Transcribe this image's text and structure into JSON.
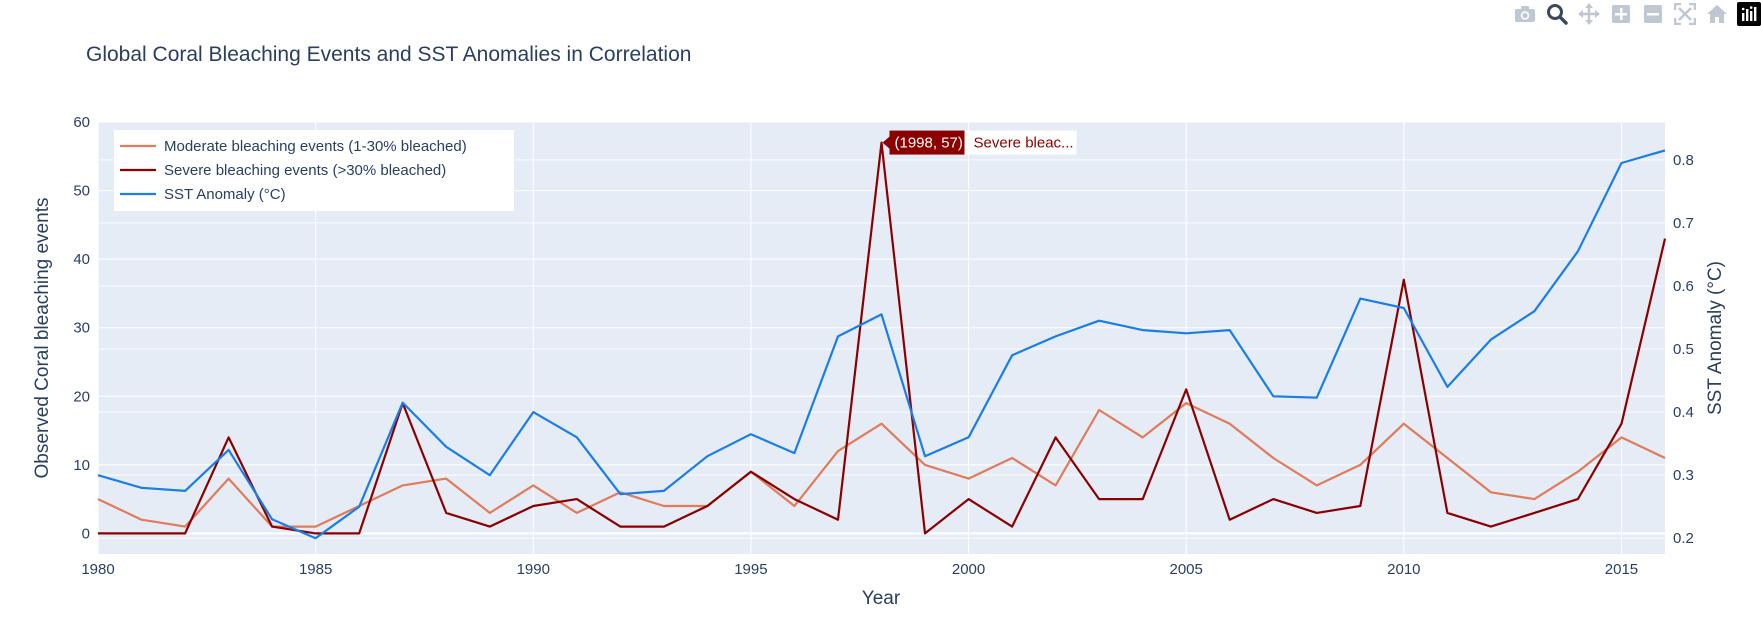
{
  "chart_data": {
    "type": "line",
    "title": "Global Coral Bleaching Events and SST Anomalies in Correlation",
    "xlabel": "Year",
    "ylabel": "Observed Coral bleaching events",
    "y2label": "SST Anomaly (°C)",
    "xlim": [
      1980,
      2016
    ],
    "ylim": [
      -3,
      60
    ],
    "y2lim": [
      0.175,
      0.86
    ],
    "x_ticks": [
      1980,
      1985,
      1990,
      1995,
      2000,
      2005,
      2010,
      2015
    ],
    "y_ticks": [
      0,
      10,
      20,
      30,
      40,
      50,
      60
    ],
    "y2_ticks": [
      0.2,
      0.3,
      0.4,
      0.5,
      0.6,
      0.7,
      0.8
    ],
    "y2_tick_labels": [
      "0.2",
      "0.3",
      "0.4",
      "0.5",
      "0.6",
      "0.7",
      "0.8"
    ],
    "x": [
      1980,
      1981,
      1982,
      1983,
      1984,
      1985,
      1986,
      1987,
      1988,
      1989,
      1990,
      1991,
      1992,
      1993,
      1994,
      1995,
      1996,
      1997,
      1998,
      1999,
      2000,
      2001,
      2002,
      2003,
      2004,
      2005,
      2006,
      2007,
      2008,
      2009,
      2010,
      2011,
      2012,
      2013,
      2014,
      2015,
      2016
    ],
    "series": [
      {
        "name": "Moderate bleaching events (1-30% bleached)",
        "axis": "y",
        "color": "#e07b5b",
        "values": [
          5,
          2,
          1,
          8,
          1,
          1,
          4,
          7,
          8,
          3,
          7,
          3,
          6,
          4,
          4,
          9,
          4,
          12,
          16,
          10,
          8,
          11,
          7,
          18,
          14,
          19,
          16,
          11,
          7,
          10,
          16,
          11,
          6,
          5,
          9,
          14,
          11
        ]
      },
      {
        "name": "Severe bleaching events (>30% bleached)",
        "axis": "y",
        "color": "#8b0000",
        "values": [
          0,
          0,
          0,
          14,
          1,
          0,
          0,
          19,
          3,
          1,
          4,
          5,
          1,
          1,
          4,
          9,
          5,
          2,
          57,
          0,
          5,
          1,
          14,
          5,
          5,
          21,
          2,
          5,
          3,
          4,
          37,
          3,
          1,
          3,
          5,
          16,
          43
        ]
      },
      {
        "name": "SST Anomaly (°C)",
        "axis": "y2",
        "color": "#1a7ee6",
        "values": [
          0.3,
          0.28,
          0.275,
          0.34,
          0.23,
          0.2,
          0.25,
          0.415,
          0.345,
          0.3,
          0.4,
          0.36,
          0.27,
          0.275,
          0.33,
          0.365,
          0.335,
          0.52,
          0.555,
          0.33,
          0.36,
          0.49,
          0.52,
          0.545,
          0.53,
          0.525,
          0.53,
          0.425,
          0.423,
          0.58,
          0.565,
          0.44,
          0.515,
          0.56,
          0.655,
          0.795,
          0.815
        ]
      }
    ],
    "legend_position": "top-left",
    "hover_label": {
      "text": "(1998, 57)",
      "name": "Severe bleac...",
      "x": 1998,
      "y": 57
    }
  },
  "modebar": {
    "buttons": [
      "camera-icon",
      "zoom-icon",
      "pan-icon",
      "zoom-in-icon",
      "zoom-out-icon",
      "autoscale-icon",
      "reset-axes-icon",
      "plotly-logo-icon"
    ]
  }
}
